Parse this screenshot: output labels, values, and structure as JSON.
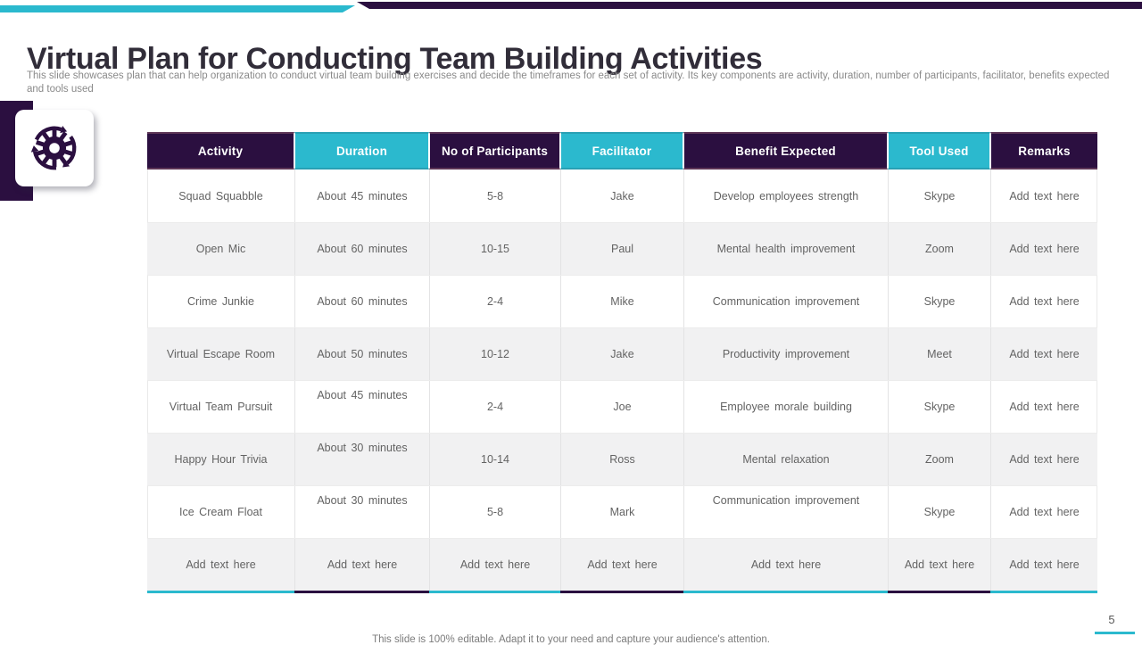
{
  "slide": {
    "title": "Virtual Plan for Conducting Team Building Activities",
    "description": "This slide showcases plan that can help organization to conduct virtual team building exercises and decide the timeframes for each set of activity. Its key components are activity, duration, number of participants, facilitator, benefits expected and tools used",
    "footer_note": "This slide is 100% editable. Adapt it to your need and capture your audience's attention.",
    "page_number": "5"
  },
  "icon": {
    "name": "gear-sync-icon"
  },
  "colors": {
    "accent_cyan": "#2BB9CE",
    "accent_purple": "#2B0F40",
    "row_alt": "#F1F1F2",
    "text_gray": "#636363",
    "title_color": "#312D39",
    "subtitle_gray": "#8A8A8A"
  },
  "table": {
    "columns": [
      {
        "label": "Activity",
        "theme": "purple"
      },
      {
        "label": "Duration",
        "theme": "cyan"
      },
      {
        "label": "No of Participants",
        "theme": "purple"
      },
      {
        "label": "Facilitator",
        "theme": "cyan"
      },
      {
        "label": "Benefit Expected",
        "theme": "purple"
      },
      {
        "label": "Tool Used",
        "theme": "cyan"
      },
      {
        "label": "Remarks",
        "theme": "purple"
      }
    ],
    "rows": [
      [
        "Squad Squabble",
        "About 45 minutes",
        "5-8",
        "Jake",
        "Develop employees strength",
        "Skype",
        "Add text here"
      ],
      [
        "Open Mic",
        "About 60 minutes",
        "10-15",
        "Paul",
        "Mental health improvement",
        "Zoom",
        "Add text here"
      ],
      [
        "Crime Junkie",
        "About 60 minutes",
        "2-4",
        "Mike",
        "Communication improvement",
        "Skype",
        "Add text here"
      ],
      [
        "Virtual Escape Room",
        "About 50 minutes",
        "10-12",
        "Jake",
        "Productivity improvement",
        "Meet",
        "Add text here"
      ],
      [
        "Virtual Team Pursuit",
        "About 45 minutes",
        "2-4",
        "Joe",
        "Employee morale building",
        "Skype",
        "Add text here"
      ],
      [
        "Happy Hour Trivia",
        "About 30 minutes",
        "10-14",
        "Ross",
        "Mental relaxation",
        "Zoom",
        "Add text here"
      ],
      [
        "Ice Cream Float",
        "About 30 minutes",
        "5-8",
        "Mark",
        "Communication improvement",
        "Skype",
        "Add text here"
      ],
      [
        "Add text here",
        "Add text here",
        "Add text here",
        "Add text here",
        "Add text here",
        "Add text here",
        "Add text here"
      ]
    ]
  }
}
